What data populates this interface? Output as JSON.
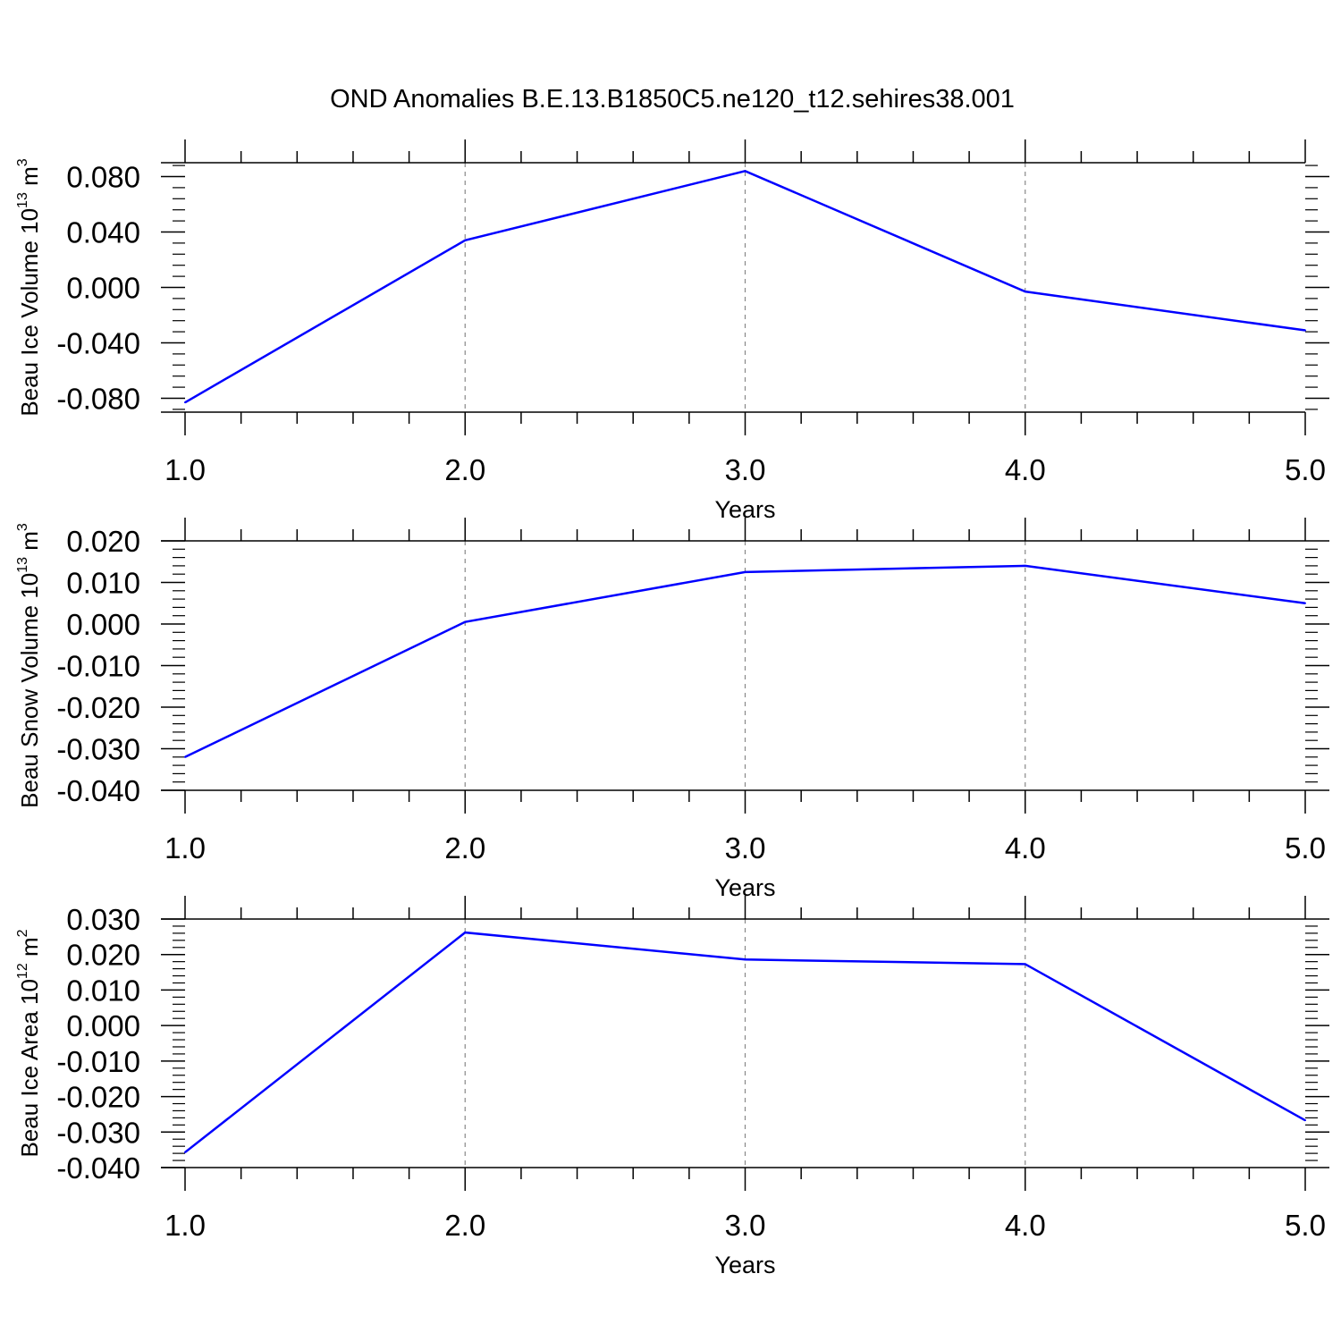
{
  "figure_title": "OND Anomalies B.E.13.B1850C5.ne120_t12.sehires38.001",
  "colors": {
    "line": "#0000ff",
    "axes": "#000000",
    "grid": "#888888"
  },
  "chart_data": [
    {
      "type": "line",
      "ylabel": {
        "text": "Beau Ice Volume 10",
        "sup": "13",
        "unit": " m",
        "unit_sup": "3"
      },
      "xlabel": "Years",
      "x": [
        1.0,
        2.0,
        3.0,
        4.0,
        5.0
      ],
      "xticks": [
        "1.0",
        "2.0",
        "3.0",
        "4.0",
        "5.0"
      ],
      "xlim": [
        1.0,
        5.0
      ],
      "ylim": [
        -0.09,
        0.09
      ],
      "yticks": [
        0.08,
        0.04,
        0.0,
        -0.04,
        -0.08
      ],
      "ytick_labels": [
        "0.080",
        "0.040",
        "0.000",
        "-0.040",
        "-0.080"
      ],
      "grid_x": true,
      "series": [
        {
          "values": [
            -0.083,
            0.034,
            0.084,
            -0.003,
            -0.031
          ]
        }
      ]
    },
    {
      "type": "line",
      "ylabel": {
        "text": "Beau Snow Volume 10",
        "sup": "13",
        "unit": " m",
        "unit_sup": "3"
      },
      "xlabel": "Years",
      "x": [
        1.0,
        2.0,
        3.0,
        4.0,
        5.0
      ],
      "xticks": [
        "1.0",
        "2.0",
        "3.0",
        "4.0",
        "5.0"
      ],
      "xlim": [
        1.0,
        5.0
      ],
      "ylim": [
        -0.04,
        0.02
      ],
      "yticks": [
        0.02,
        0.01,
        0.0,
        -0.01,
        -0.02,
        -0.03,
        -0.04
      ],
      "ytick_labels": [
        "0.020",
        "0.010",
        "0.000",
        "-0.010",
        "-0.020",
        "-0.030",
        "-0.040"
      ],
      "grid_x": true,
      "series": [
        {
          "values": [
            -0.032,
            0.0005,
            0.0125,
            0.014,
            0.005
          ]
        }
      ]
    },
    {
      "type": "line",
      "ylabel": {
        "text": "Beau Ice Area 10",
        "sup": "12",
        "unit": " m",
        "unit_sup": "2"
      },
      "xlabel": "Years",
      "x": [
        1.0,
        2.0,
        3.0,
        4.0,
        5.0
      ],
      "xticks": [
        "1.0",
        "2.0",
        "3.0",
        "4.0",
        "5.0"
      ],
      "xlim": [
        1.0,
        5.0
      ],
      "ylim": [
        -0.04,
        0.03
      ],
      "yticks": [
        0.03,
        0.02,
        0.01,
        0.0,
        -0.01,
        -0.02,
        -0.03,
        -0.04
      ],
      "ytick_labels": [
        "0.030",
        "0.020",
        "0.010",
        "0.000",
        "-0.010",
        "-0.020",
        "-0.030",
        "-0.040"
      ],
      "grid_x": true,
      "series": [
        {
          "values": [
            -0.0357,
            0.0262,
            0.0186,
            0.0173,
            -0.0267
          ]
        }
      ]
    }
  ]
}
